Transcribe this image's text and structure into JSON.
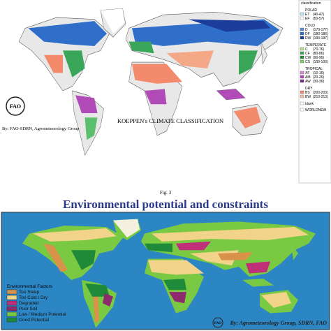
{
  "top_map": {
    "title": "KOEPPEN's CLIMATE CLASSIFICATION",
    "credit": "By: FAO-SDRN, Agrometeorology Group",
    "legend": {
      "header": "classification",
      "groups": [
        {
          "name": "POLAR",
          "items": [
            {
              "code": "ET",
              "range": "(40-47)"
            },
            {
              "code": "EF",
              "range": "(50-57)"
            }
          ]
        },
        {
          "name": "COLD",
          "items": [
            {
              "code": "D",
              "range": "(170-177)"
            },
            {
              "code": "DF",
              "range": "(180-186)"
            },
            {
              "code": "DW",
              "range": "(190-197)"
            }
          ]
        },
        {
          "name": "TEMPERATE",
          "items": [
            {
              "code": "C",
              "range": "(70-76)"
            },
            {
              "code": "CF",
              "range": "(80-86)"
            },
            {
              "code": "CW",
              "range": "(90-96)"
            },
            {
              "code": "CS",
              "range": "(100-106)"
            }
          ]
        },
        {
          "name": "TROPICAL",
          "items": [
            {
              "code": "AF",
              "range": "(10-16)"
            },
            {
              "code": "AM",
              "range": "(20-26)"
            },
            {
              "code": "AW",
              "range": "(30-36)"
            }
          ]
        },
        {
          "name": "DRY",
          "items": [
            {
              "code": "BS",
              "range": "(200-203)"
            },
            {
              "code": "BW",
              "range": "(210-213)"
            }
          ]
        }
      ],
      "extra": [
        "blank",
        "WORLDNEW"
      ]
    }
  },
  "caption": "Fig. 3",
  "heading": "Environmental potential and constraints",
  "bottom_map": {
    "legend_title": "Environmental Factors",
    "items": [
      "Too Steep",
      "Too Cold / Dry",
      "Degraded",
      "Poor Soil",
      "Low / Medium Potential",
      "Good Potential"
    ],
    "credit": "By: Agrometeorology Group, SDRN, FAO"
  }
}
